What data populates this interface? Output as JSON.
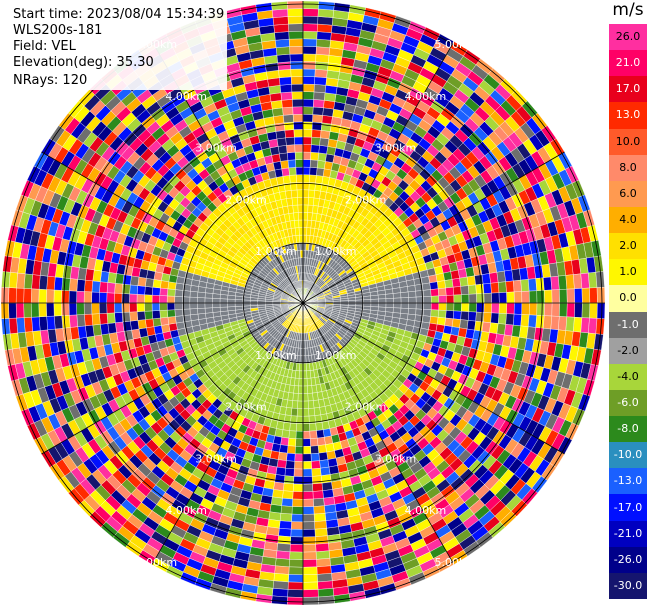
{
  "info": {
    "start_time": "Start time: 2023/08/04 15:34:39",
    "station": "WLS200s-181",
    "field": "Field: VEL",
    "elevation": "Elevation(deg): 35.30",
    "nrays": "NRays: 120"
  },
  "colorbar": {
    "unit": "m/s",
    "ticks": [
      "26.0",
      "21.0",
      "17.0",
      "13.0",
      "10.0",
      "8.0",
      "6.0",
      "4.0",
      "2.0",
      "1.0",
      "0.0",
      "-1.0",
      "-2.0",
      "-4.0",
      "-6.0",
      "-8.0",
      "-10.0",
      "-13.0",
      "-17.0",
      "-21.0",
      "-26.0",
      "-30.0"
    ],
    "colors": [
      "#ff2fa0",
      "#ff0066",
      "#e8001c",
      "#ff2a00",
      "#ff5a2a",
      "#ff8a6a",
      "#ff9a50",
      "#ffae00",
      "#ffe000",
      "#fff700",
      "#ffffa0",
      "#6e6e6e",
      "#a0a0a0",
      "#a8d63a",
      "#6e9e26",
      "#2c8a1c",
      "#2a8fbf",
      "#1a60ff",
      "#0010ff",
      "#0000c0",
      "#00008a",
      "#15156e"
    ]
  },
  "chart_data": {
    "type": "ppi",
    "field": "VEL",
    "units": "m/s",
    "elevation_deg": 35.3,
    "nrays": 120,
    "range_rings": [
      {
        "label": "1.00km",
        "range_km": 1.0
      },
      {
        "label": "2.00km",
        "range_km": 2.0
      },
      {
        "label": "3.00km",
        "range_km": 3.0
      },
      {
        "label": "4.00km",
        "range_km": 4.0
      },
      {
        "label": "5.00km",
        "range_km": 5.0
      }
    ],
    "max_range_km": 5.05,
    "valid_data_range_km": 2.1,
    "near_field_pattern": [
      {
        "azimuth_from": 0,
        "azimuth_to": 360,
        "range_from_km": 0.0,
        "range_to_km": 1.0,
        "velocity_class": "0.0",
        "note": "grey"
      },
      {
        "azimuth_from": 270,
        "azimuth_to": 90,
        "range_from_km": 1.0,
        "range_to_km": 2.1,
        "velocity_class": "2.0"
      },
      {
        "azimuth_from": 90,
        "azimuth_to": 270,
        "range_from_km": 1.0,
        "range_to_km": 2.1,
        "velocity_class": "-2.0"
      }
    ],
    "far_field": "noise"
  }
}
